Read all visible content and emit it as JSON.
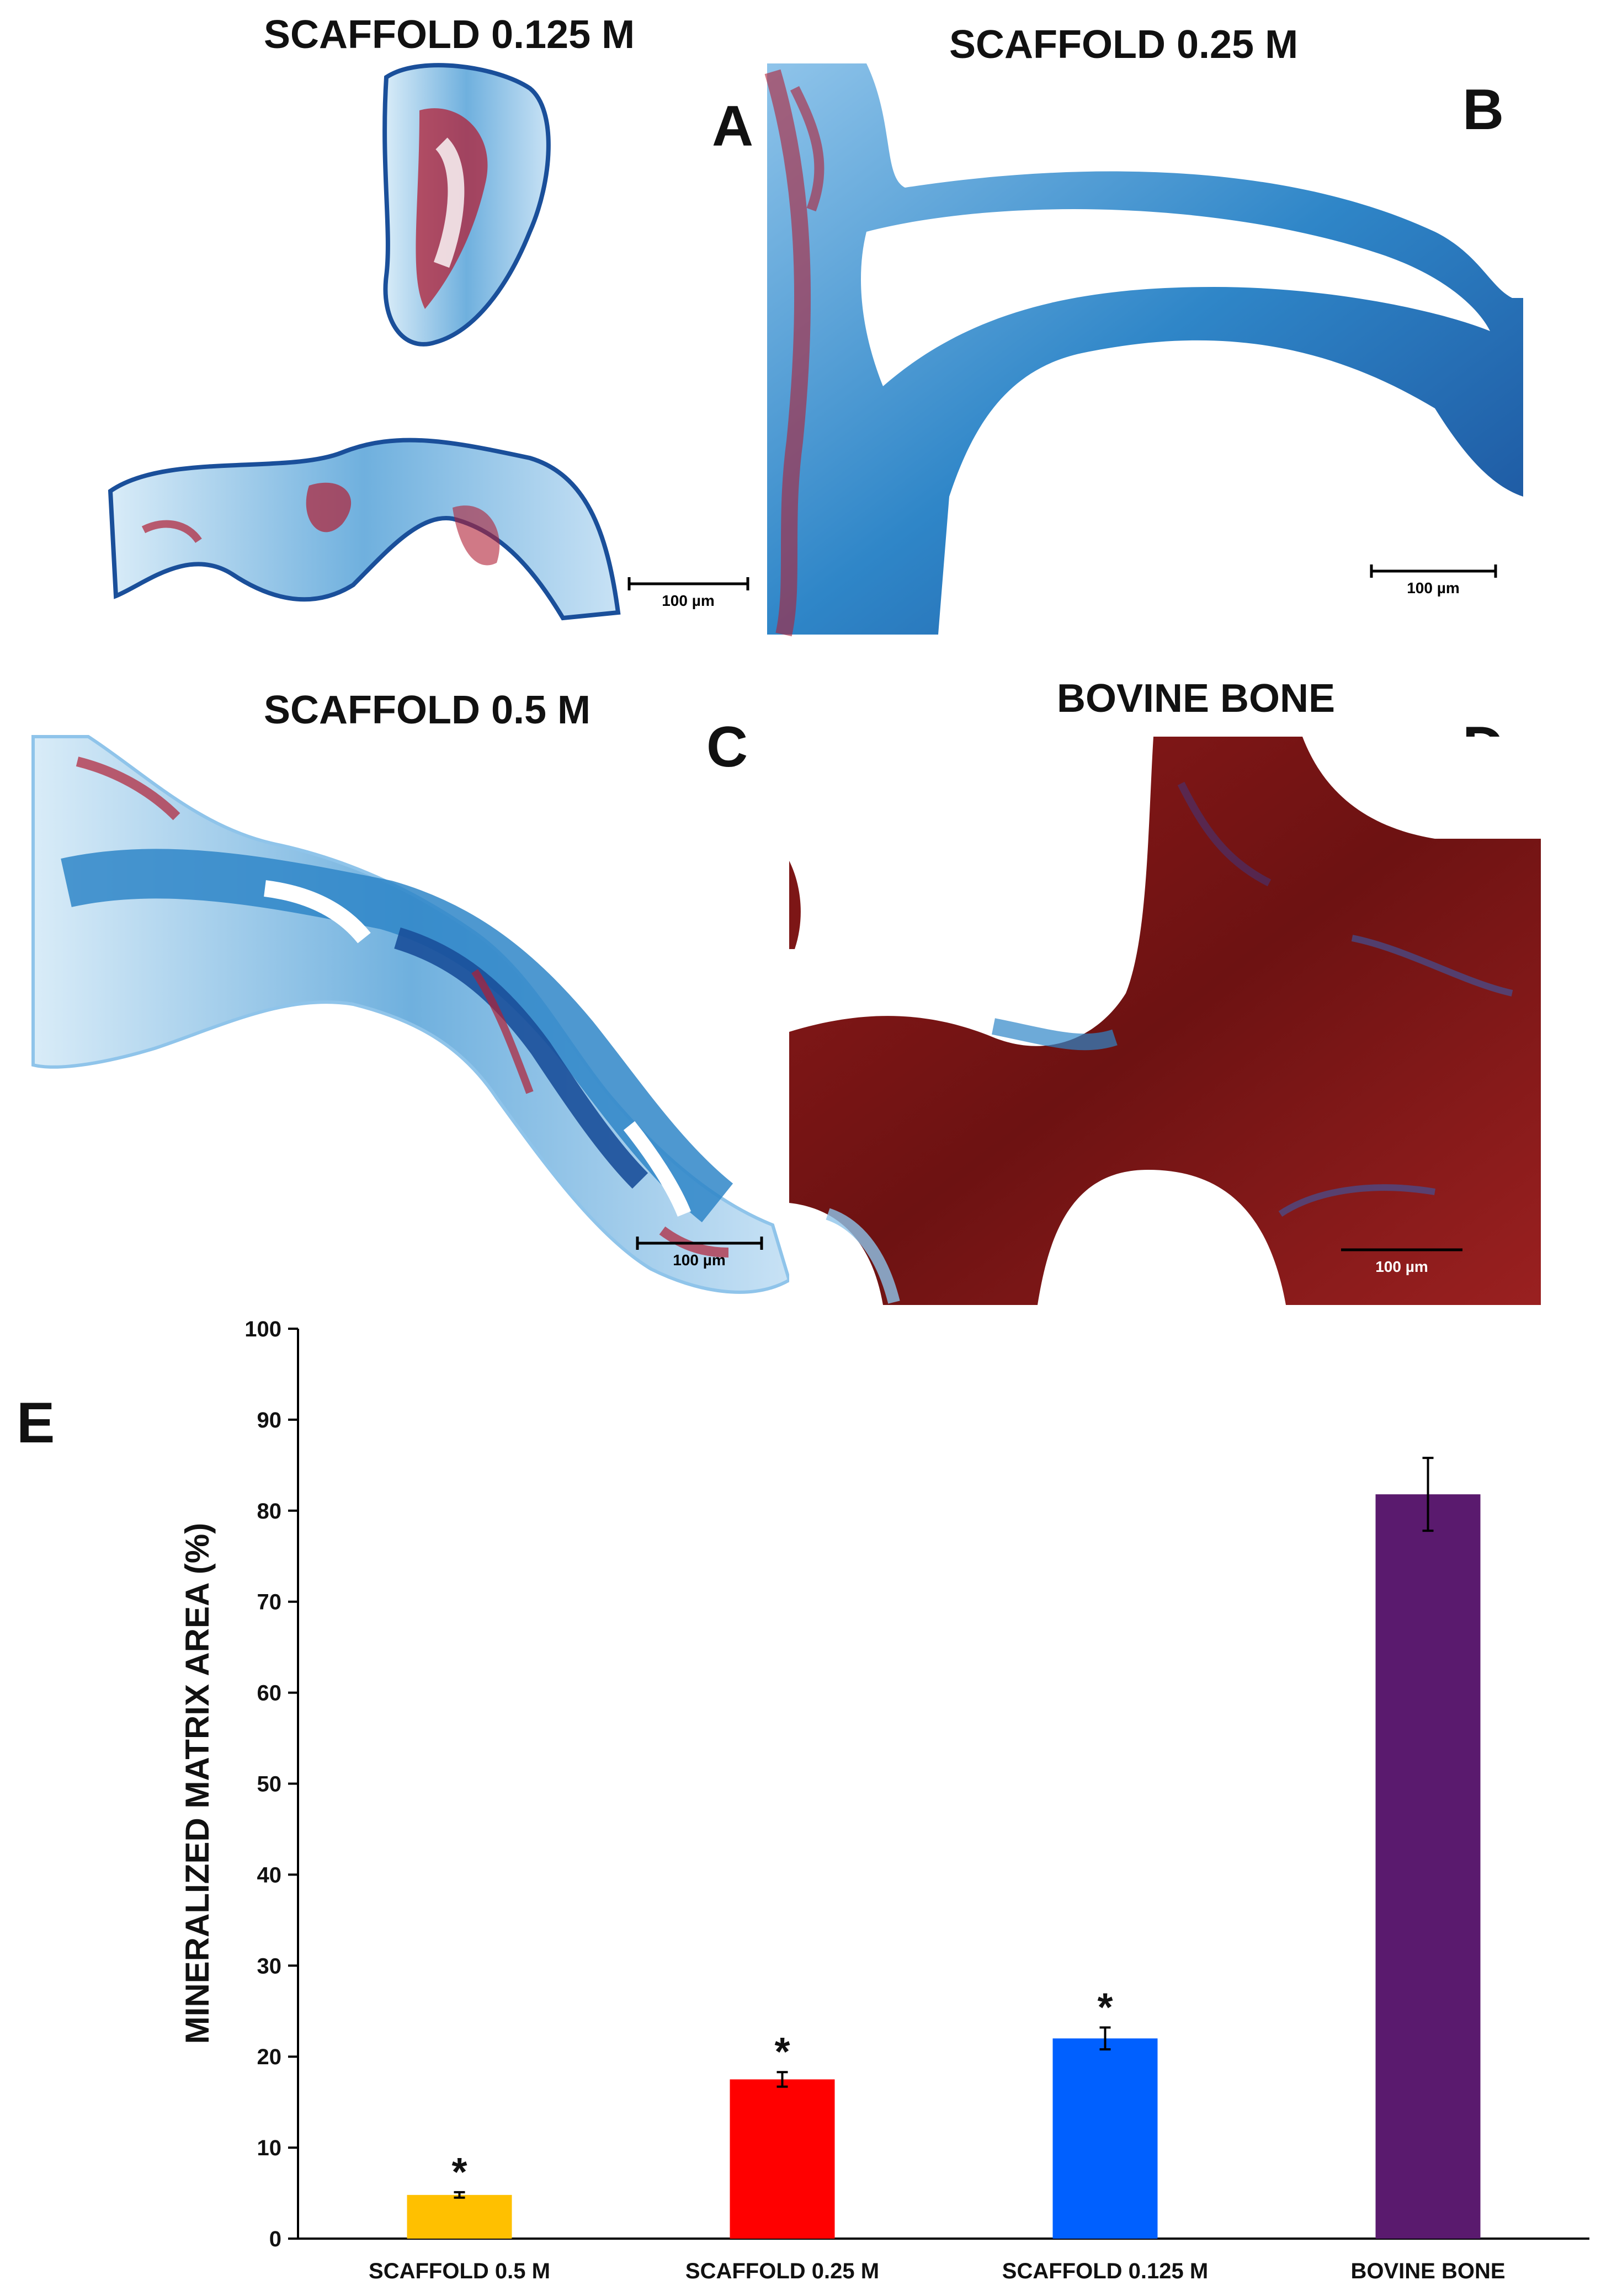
{
  "panels": [
    {
      "letter": "A",
      "title": "SCAFFOLD 0.125 M",
      "scale_label": "100 µm"
    },
    {
      "letter": "B",
      "title": "SCAFFOLD 0.25 M",
      "scale_label": "100 µm"
    },
    {
      "letter": "C",
      "title": "SCAFFOLD 0.5 M",
      "scale_label": "100 µm"
    },
    {
      "letter": "D",
      "title": "BOVINE BONE",
      "scale_label": "100 µm"
    }
  ],
  "colors": {
    "stain_blue": "#2f86c8",
    "stain_red": "#b11f35",
    "bone_red": "#7d1616"
  },
  "chart_data": {
    "type": "bar",
    "panel_letter": "E",
    "title": "",
    "xlabel": "",
    "ylabel": "MINERALIZED MATRIX AREA (%)",
    "ylim": [
      0,
      100
    ],
    "yticks": [
      0,
      10,
      20,
      30,
      40,
      50,
      60,
      70,
      80,
      90,
      100
    ],
    "categories": [
      "SCAFFOLD 0.5 M",
      "SCAFFOLD 0.25 M",
      "SCAFFOLD 0.125 M",
      "BOVINE BONE"
    ],
    "values": [
      4.8,
      17.5,
      22.0,
      81.8
    ],
    "errors": [
      0.3,
      0.8,
      1.2,
      4.0
    ],
    "significance": [
      "*",
      "*",
      "*",
      ""
    ],
    "colors": [
      "#ffc000",
      "#ff0000",
      "#0060ff",
      "#5a1a6e"
    ],
    "grid": false,
    "legend": "none"
  }
}
